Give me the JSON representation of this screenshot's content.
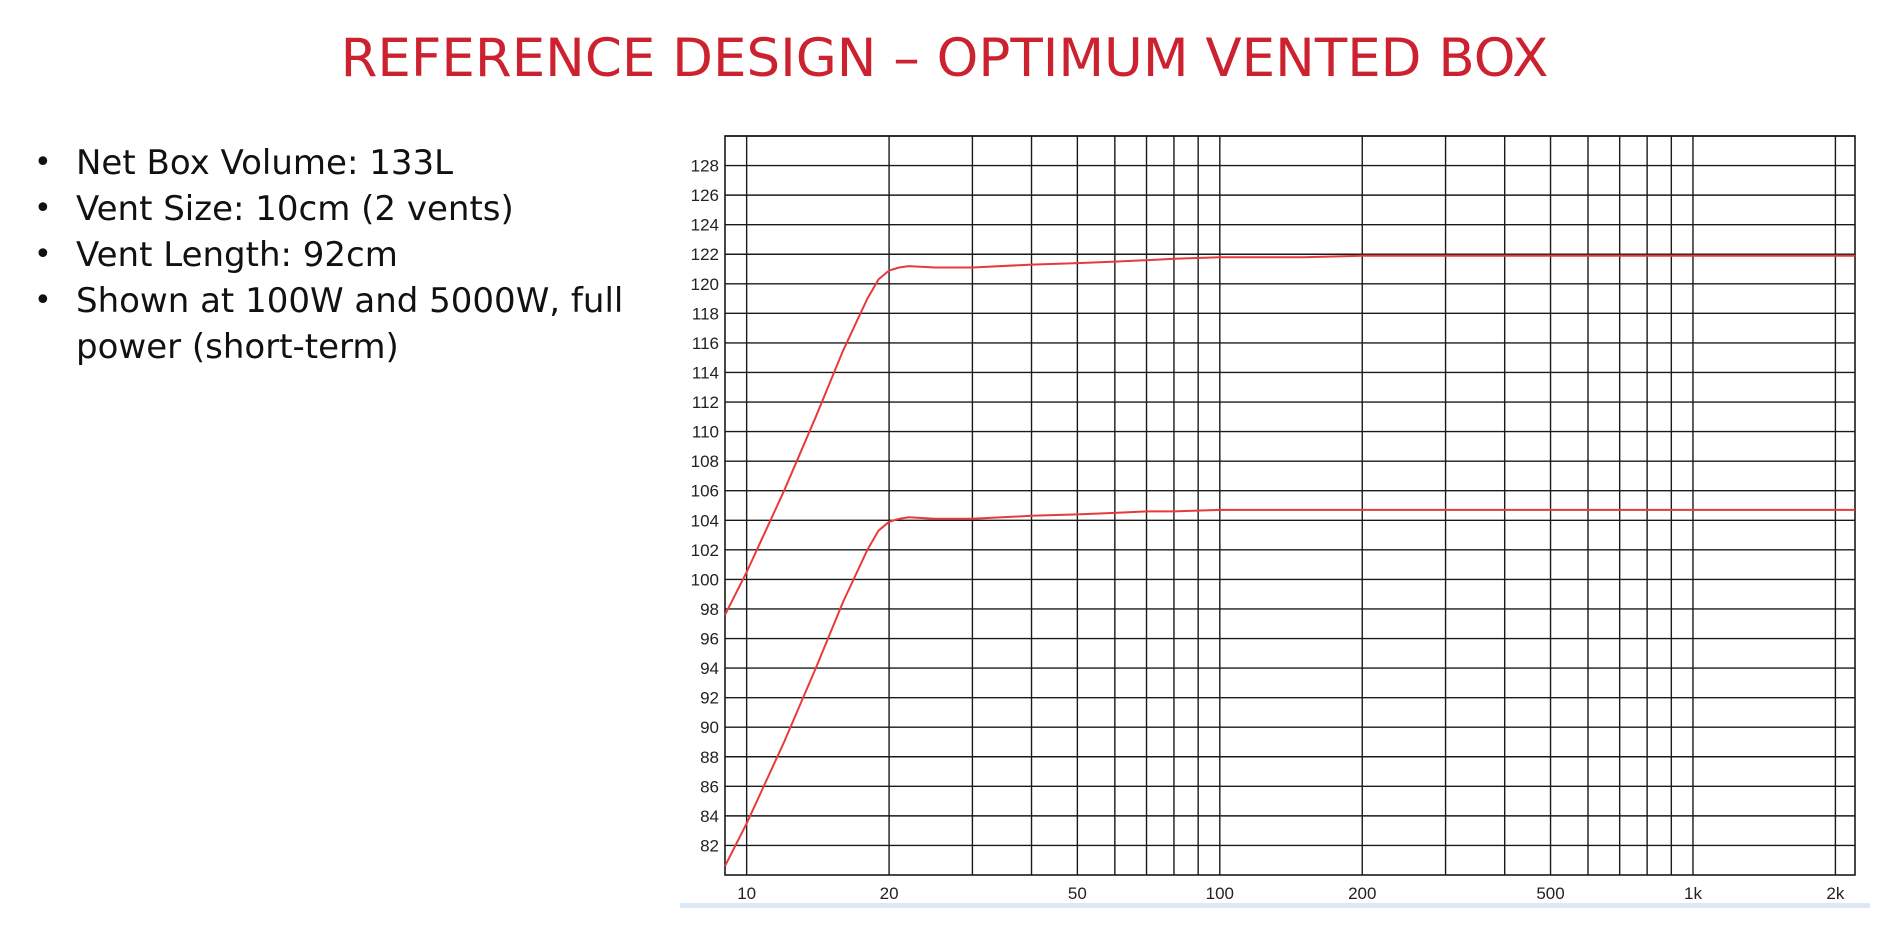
{
  "slide": {
    "title": "REFERENCE DESIGN – OPTIMUM VENTED BOX",
    "bullets": [
      "Net Box Volume: 133L",
      "Vent Size: 10cm (2 vents)",
      "Vent Length: 92cm",
      "Shown at 100W and 5000W, full power (short-term)"
    ]
  },
  "chart_data": {
    "type": "line",
    "title": "",
    "xlabel": "",
    "ylabel": "",
    "x_scale": "log",
    "xlim": [
      9,
      2200
    ],
    "ylim": [
      80,
      130
    ],
    "grid": true,
    "legend": "none",
    "line_color": "#e83a3a",
    "x_ticks": [
      10,
      20,
      30,
      40,
      50,
      60,
      70,
      80,
      90,
      100,
      200,
      300,
      400,
      500,
      600,
      700,
      800,
      900,
      1000,
      2000
    ],
    "x_tick_labels": [
      {
        "value": 10,
        "label": "10"
      },
      {
        "value": 20,
        "label": "20"
      },
      {
        "value": 50,
        "label": "50"
      },
      {
        "value": 100,
        "label": "100"
      },
      {
        "value": 200,
        "label": "200"
      },
      {
        "value": 500,
        "label": "500"
      },
      {
        "value": 1000,
        "label": "1k"
      },
      {
        "value": 2000,
        "label": "2k"
      }
    ],
    "y_ticks": [
      82,
      84,
      86,
      88,
      90,
      92,
      94,
      96,
      98,
      100,
      102,
      104,
      106,
      108,
      110,
      112,
      114,
      116,
      118,
      120,
      122,
      124,
      126,
      128
    ],
    "y_gridlines": [
      82,
      84,
      86,
      88,
      90,
      92,
      94,
      96,
      98,
      100,
      102,
      104,
      106,
      108,
      110,
      112,
      114,
      116,
      118,
      120,
      122,
      124,
      126,
      128,
      130
    ],
    "series": [
      {
        "x": [
          9,
          10,
          12,
          14,
          16,
          18,
          19,
          20,
          21,
          22,
          25,
          30,
          40,
          50,
          60,
          70,
          80,
          100,
          150,
          200,
          500,
          1000,
          2200
        ],
        "y": [
          97.6,
          100.5,
          106,
          111,
          115.5,
          119,
          120.3,
          120.9,
          121.1,
          121.2,
          121.1,
          121.1,
          121.3,
          121.4,
          121.5,
          121.6,
          121.7,
          121.8,
          121.8,
          121.9,
          121.9,
          121.9,
          121.9
        ]
      },
      {
        "x": [
          9,
          10,
          12,
          14,
          16,
          18,
          19,
          20,
          21,
          22,
          25,
          30,
          40,
          50,
          60,
          70,
          80,
          100,
          150,
          200,
          500,
          1000,
          2200
        ],
        "y": [
          80.6,
          83.5,
          89,
          94,
          98.5,
          102,
          103.3,
          103.9,
          104.1,
          104.2,
          104.1,
          104.1,
          104.3,
          104.4,
          104.5,
          104.6,
          104.6,
          104.7,
          104.7,
          104.7,
          104.7,
          104.7,
          104.7
        ]
      }
    ]
  }
}
